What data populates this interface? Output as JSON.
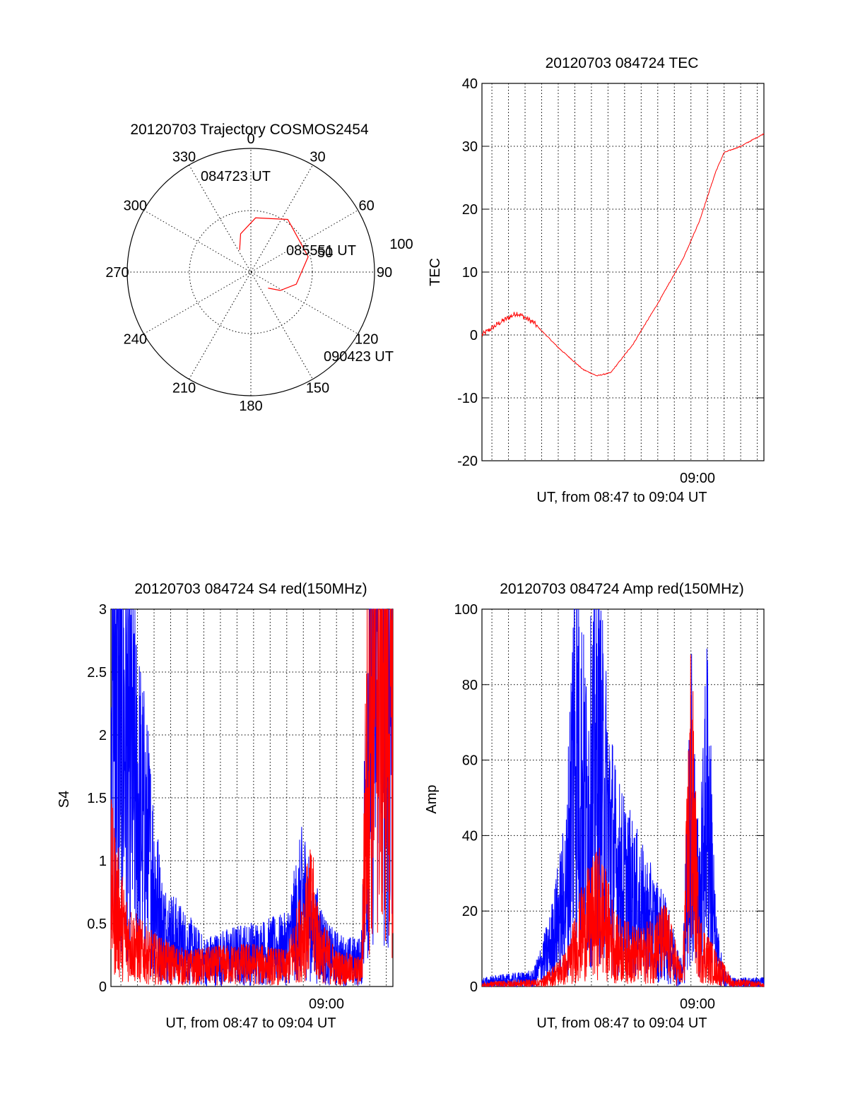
{
  "colors": {
    "red": "#ff0000",
    "blue": "#0000ff",
    "axis": "#000000"
  },
  "chart_data": [
    {
      "type": "polar",
      "title": "20120703 Trajectory COSMOS2454",
      "angle_labels": [
        "0",
        "30",
        "60",
        "90",
        "120",
        "150",
        "180",
        "210",
        "240",
        "270",
        "300",
        "330"
      ],
      "radial_labels": [
        "50",
        "100"
      ],
      "rlim": [
        0,
        100
      ],
      "grid": true,
      "series": [
        {
          "color": "#ff0000",
          "points": [
            {
              "az": 333,
              "el": 20
            },
            {
              "az": 345,
              "el": 32
            },
            {
              "az": 5,
              "el": 44
            },
            {
              "az": 35,
              "el": 52
            },
            {
              "az": 75,
              "el": 48
            },
            {
              "az": 105,
              "el": 38
            },
            {
              "az": 122,
              "el": 28
            },
            {
              "az": 133,
              "el": 19
            }
          ]
        }
      ],
      "annotations": [
        {
          "text": "084723 UT",
          "az": 333,
          "el": 20
        },
        {
          "text": "085551 UT",
          "az": 75,
          "el": 48
        },
        {
          "text": "090423 UT",
          "az": 133,
          "el": 19
        }
      ]
    },
    {
      "type": "line",
      "title": "20120703 084724 TEC",
      "xlabel": "UT, from 08:47 to 09:04 UT",
      "ylabel": "TEC",
      "xlim": [
        "08:47:24",
        "09:04:24"
      ],
      "ylim": [
        -20,
        40
      ],
      "yticks": [
        "-20",
        "-10",
        "0",
        "10",
        "20",
        "30",
        "40"
      ],
      "xtick_label": "09:00",
      "grid": true,
      "series": [
        {
          "color": "#ff0000",
          "x": [
            "08:47:24",
            "08:48:30",
            "08:49:30",
            "08:50:30",
            "08:52:00",
            "08:53:30",
            "08:54:20",
            "08:55:10",
            "08:56:30",
            "08:58:00",
            "08:59:30",
            "09:00:30",
            "09:01:30",
            "09:02:00",
            "09:03:00",
            "09:04:24"
          ],
          "y": [
            0,
            2,
            3.5,
            2,
            -2,
            -5.5,
            -6.5,
            -6,
            -1.5,
            5,
            12,
            18,
            26,
            29,
            30,
            32
          ]
        }
      ]
    },
    {
      "type": "line",
      "title": "20120703 084724 S4 red(150MHz)",
      "xlabel": "UT, from 08:47 to 09:04 UT",
      "ylabel": "S4",
      "xlim": [
        "08:47:24",
        "09:04:24"
      ],
      "ylim": [
        0,
        3
      ],
      "yticks": [
        "0",
        "0.5",
        "1",
        "1.5",
        "2",
        "2.5",
        "3"
      ],
      "xtick_label": "09:00",
      "grid": true,
      "series": [
        {
          "color": "#0000ff",
          "x": [
            "08:47:24",
            "08:48:00",
            "08:48:30",
            "08:49:00",
            "08:49:30",
            "08:50:30",
            "08:51:30",
            "08:53:00",
            "08:55:00",
            "08:57:00",
            "08:58:00",
            "08:59:00",
            "08:59:40",
            "09:00:30",
            "09:01:30",
            "09:02:30",
            "09:03:00",
            "09:03:30",
            "09:04:24"
          ],
          "y": [
            3,
            2.2,
            1.8,
            1.5,
            1.2,
            0.45,
            0.35,
            0.2,
            0.25,
            0.28,
            0.3,
            0.7,
            0.45,
            0.25,
            0.2,
            0.2,
            2.6,
            2.8,
            2.4
          ]
        },
        {
          "color": "#ff0000",
          "x": [
            "08:47:24",
            "08:48:00",
            "08:48:30",
            "08:49:30",
            "08:50:30",
            "08:52:00",
            "08:54:00",
            "08:56:00",
            "08:58:00",
            "08:59:30",
            "09:00:00",
            "09:01:00",
            "09:02:30",
            "09:03:00",
            "09:03:30",
            "09:04:24"
          ],
          "y": [
            0.8,
            0.5,
            0.35,
            0.25,
            0.2,
            0.15,
            0.17,
            0.18,
            0.15,
            0.6,
            0.3,
            0.15,
            0.12,
            2.5,
            2.7,
            2.2
          ]
        }
      ]
    },
    {
      "type": "line",
      "title": "20120703 084724 Amp red(150MHz)",
      "xlabel": "UT, from 08:47 to 09:04 UT",
      "ylabel": "Amp",
      "xlim": [
        "08:47:24",
        "09:04:24"
      ],
      "ylim": [
        0,
        100
      ],
      "yticks": [
        "0",
        "20",
        "40",
        "60",
        "80",
        "100"
      ],
      "xtick_label": "09:00",
      "grid": true,
      "series": [
        {
          "color": "#0000ff",
          "x": [
            "08:47:24",
            "08:49:00",
            "08:50:30",
            "08:51:30",
            "08:52:30",
            "08:53:00",
            "08:53:40",
            "08:54:20",
            "08:55:30",
            "08:57:00",
            "08:58:30",
            "08:59:30",
            "09:00:00",
            "09:00:30",
            "09:01:00",
            "09:01:30",
            "09:02:00",
            "09:02:30",
            "09:04:24"
          ],
          "y": [
            1,
            1.5,
            2,
            10,
            25,
            70,
            45,
            60,
            30,
            20,
            12,
            3,
            50,
            20,
            52,
            10,
            2,
            1,
            1
          ]
        },
        {
          "color": "#ff0000",
          "x": [
            "08:47:24",
            "08:51:00",
            "08:52:30",
            "08:53:30",
            "08:54:30",
            "08:55:30",
            "08:57:00",
            "08:58:30",
            "08:59:30",
            "09:00:00",
            "09:00:30",
            "09:01:30",
            "09:02:30",
            "09:04:24"
          ],
          "y": [
            0.5,
            1,
            5,
            15,
            20,
            10,
            8,
            12,
            2,
            52,
            10,
            5,
            1,
            0.5
          ]
        }
      ]
    }
  ]
}
